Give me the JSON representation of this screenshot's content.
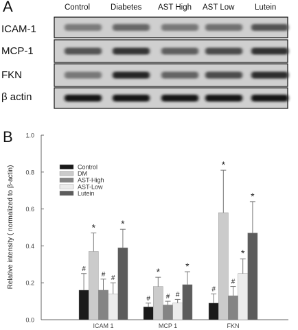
{
  "panel_a": {
    "letter": "A",
    "lanes": [
      "Control",
      "Diabetes",
      "AST High",
      "AST Low",
      "Lutein"
    ],
    "rows": [
      {
        "label": "ICAM-1",
        "intensity": [
          0.38,
          0.5,
          0.4,
          0.44,
          0.62
        ]
      },
      {
        "label": "MCP-1",
        "intensity": [
          0.62,
          0.78,
          0.55,
          0.66,
          0.8
        ]
      },
      {
        "label": "FKN",
        "intensity": [
          0.4,
          0.86,
          0.52,
          0.66,
          0.82
        ]
      },
      {
        "label": "β actin",
        "intensity": [
          0.95,
          0.95,
          0.95,
          0.95,
          0.95
        ]
      }
    ]
  },
  "panel_b": {
    "letter": "B"
  },
  "chart_data": {
    "type": "bar",
    "ylabel": "Relative intensity ( normalized to β-actin)",
    "ylim": [
      0.0,
      1.0
    ],
    "yticks": [
      "0.0",
      "0.2",
      "0.4",
      "0.6",
      "0.8",
      "1.0"
    ],
    "categories": [
      "ICAM 1",
      "MCP 1",
      "FKN"
    ],
    "legend_position": "top-left",
    "series": [
      {
        "name": "Control",
        "color": "#1a1a1a",
        "values": [
          0.16,
          0.07,
          0.09
        ],
        "errors": [
          0.09,
          0.02,
          0.05
        ],
        "marks": [
          "#",
          "#",
          "#"
        ]
      },
      {
        "name": "DM",
        "color": "#cbcbcb",
        "values": [
          0.37,
          0.18,
          0.58
        ],
        "errors": [
          0.1,
          0.05,
          0.23
        ],
        "marks": [
          "*",
          "*",
          "*"
        ]
      },
      {
        "name": "AST-High",
        "color": "#848484",
        "values": [
          0.16,
          0.08,
          0.13
        ],
        "errors": [
          0.06,
          0.02,
          0.05
        ],
        "marks": [
          "#",
          "#",
          "#"
        ]
      },
      {
        "name": "AST-Low",
        "color": "#ececec",
        "values": [
          0.14,
          0.09,
          0.25
        ],
        "errors": [
          0.06,
          0.02,
          0.08
        ],
        "marks": [
          "#",
          "#",
          "*"
        ]
      },
      {
        "name": "Lutein",
        "color": "#5c5c5c",
        "values": [
          0.39,
          0.19,
          0.47
        ],
        "errors": [
          0.1,
          0.07,
          0.17
        ],
        "marks": [
          "*",
          "*",
          "*"
        ]
      }
    ]
  }
}
